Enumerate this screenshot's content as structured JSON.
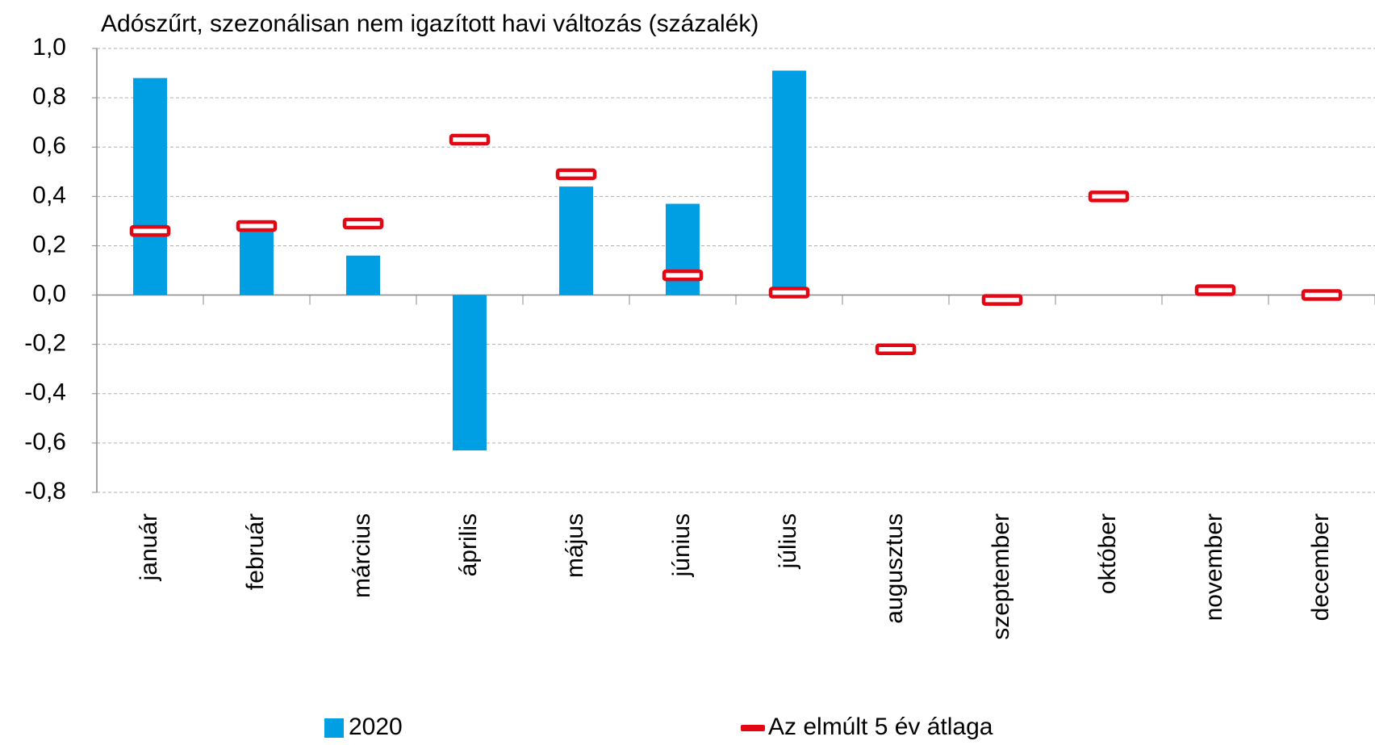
{
  "chart_data": {
    "type": "bar",
    "title": "Adószűrt, szezonálisan nem igazított havi változás (százalék)",
    "categories": [
      "január",
      "február",
      "március",
      "április",
      "május",
      "június",
      "július",
      "augusztus",
      "szeptember",
      "október",
      "november",
      "december"
    ],
    "series": [
      {
        "name": "2020",
        "kind": "bar",
        "color": "#009fe3",
        "values": [
          0.88,
          0.27,
          0.16,
          -0.63,
          0.44,
          0.37,
          0.91,
          null,
          null,
          null,
          null,
          null
        ]
      },
      {
        "name": "Az elmúlt 5 év átlaga",
        "kind": "marker",
        "color": "#e30613",
        "values": [
          0.26,
          0.28,
          0.29,
          0.63,
          0.49,
          0.08,
          0.01,
          -0.22,
          -0.02,
          0.4,
          0.02,
          0.0
        ]
      }
    ],
    "ylim": [
      -0.8,
      1.0
    ],
    "yticks": [
      {
        "value": -0.8,
        "label": "-0,8"
      },
      {
        "value": -0.6,
        "label": "-0,6"
      },
      {
        "value": -0.4,
        "label": "-0,4"
      },
      {
        "value": -0.2,
        "label": "-0,2"
      },
      {
        "value": 0,
        "label": "0,0"
      },
      {
        "value": 0.2,
        "label": "0,2"
      },
      {
        "value": 0.4,
        "label": "0,4"
      },
      {
        "value": 0.6,
        "label": "0,6"
      },
      {
        "value": 0.8,
        "label": "0,8"
      },
      {
        "value": 1.0,
        "label": "1,0"
      }
    ],
    "grid": true
  }
}
